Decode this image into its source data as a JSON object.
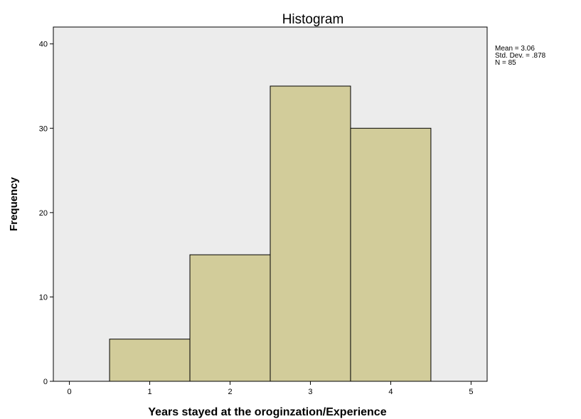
{
  "chart_data": {
    "type": "bar",
    "title": "Histogram",
    "xlabel": "Years stayed at the oroginzation/Experience",
    "ylabel": "Frequency",
    "x_ticks": [
      0,
      1,
      2,
      3,
      4,
      5
    ],
    "y_ticks": [
      0,
      10,
      20,
      30,
      40
    ],
    "xlim": [
      -0.2,
      5.2
    ],
    "ylim": [
      0,
      42
    ],
    "categories": [
      "1",
      "2",
      "3",
      "4"
    ],
    "values": [
      5,
      15,
      35,
      30
    ],
    "grid": false,
    "legend": "none",
    "colors": {
      "plot_background": "#ececec",
      "bar_fill": "#d2cc9a",
      "bar_stroke": "#000000"
    },
    "stats": {
      "mean": "Mean = 3.06",
      "std_dev": "Std. Dev. = .878",
      "n": "N = 85"
    }
  }
}
